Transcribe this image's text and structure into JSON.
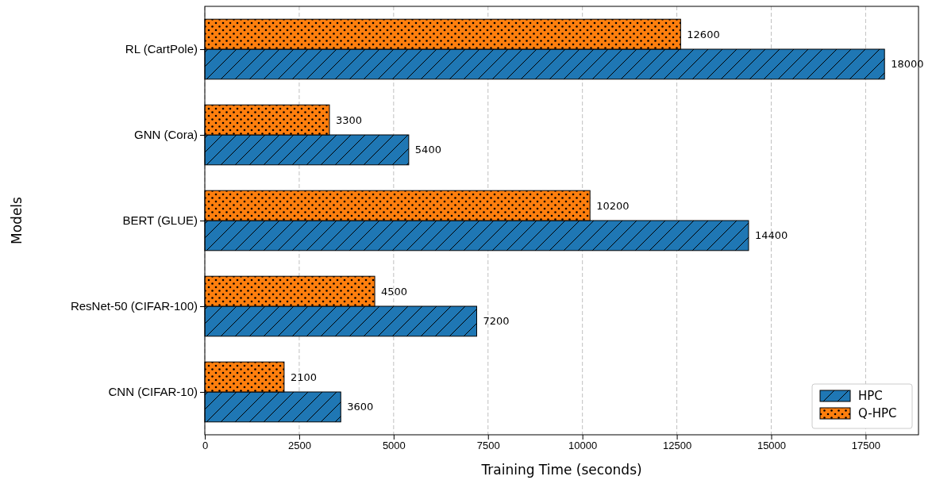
{
  "chart_data": {
    "type": "bar",
    "orientation": "horizontal",
    "xlabel": "Training Time (seconds)",
    "ylabel": "Models",
    "categories": [
      "RL (CartPole)",
      "GNN (Cora)",
      "BERT (GLUE)",
      "ResNet-50 (CIFAR-100)",
      "CNN (CIFAR-10)"
    ],
    "series": [
      {
        "name": "HPC",
        "color": "#1f77b4",
        "values": [
          18000,
          5400,
          14400,
          7200,
          3600
        ]
      },
      {
        "name": "Q-HPC",
        "color": "#ff7f0e",
        "values": [
          12600,
          3300,
          10200,
          4500,
          2100
        ]
      }
    ],
    "xlim": [
      0,
      18900
    ],
    "xticks": [
      0,
      2500,
      5000,
      7500,
      10000,
      12500,
      15000,
      17500
    ],
    "grid": "x",
    "legend": "bottom right",
    "data_labels": true
  }
}
